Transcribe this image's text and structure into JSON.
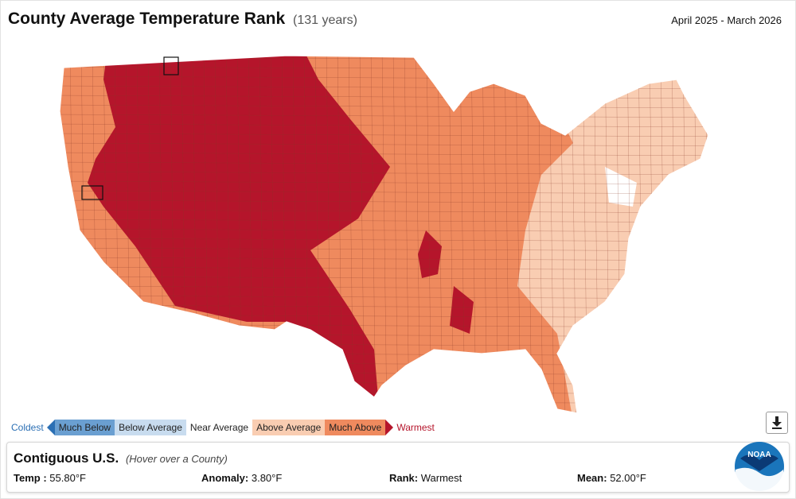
{
  "header": {
    "title": "County Average Temperature Rank",
    "subtitle": "(131 years)",
    "period": "April 2025 - March 2026"
  },
  "legend": {
    "coldest_label": "Coldest",
    "warmest_label": "Warmest",
    "categories": [
      {
        "label": "Much Below",
        "color": "#6a9fd1"
      },
      {
        "label": "Below Average",
        "color": "#c8dcef"
      },
      {
        "label": "Near Average",
        "color": "#ffffff"
      },
      {
        "label": "Above Average",
        "color": "#f9cdb2"
      },
      {
        "label": "Much Above",
        "color": "#ef8a5e"
      }
    ],
    "record_color": "#b5152b"
  },
  "info_panel": {
    "region": "Contiguous U.S.",
    "hint": "(Hover over a County)",
    "temp_label": "Temp :",
    "temp_value": "55.80°F",
    "anomaly_label": "Anomaly:",
    "anomaly_value": "3.80°F",
    "rank_label": "Rank:",
    "rank_value": "Warmest",
    "mean_label": "Mean:",
    "mean_value": "52.00°F"
  },
  "colors": {
    "warmest": "#b5152b",
    "much_above": "#ef8a5e",
    "above_average": "#f9cdb2",
    "near_average": "#ffffff",
    "county_border": "#8a3a2a"
  },
  "icons": {
    "download": "download-icon",
    "logo": "noaa-logo"
  },
  "logo_text": "NOAA"
}
